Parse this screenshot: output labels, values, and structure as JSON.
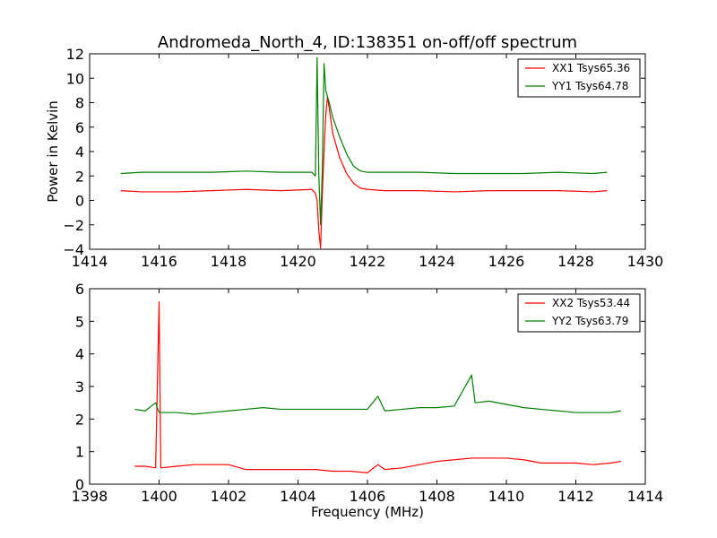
{
  "figure": {
    "title": "Andromeda_North_4, ID:138351 on-off/off spectrum"
  },
  "chart_data": [
    {
      "type": "line",
      "title": "Andromeda_North_4, ID:138351 on-off/off spectrum",
      "xlabel": "",
      "ylabel": "Power in Kelvin",
      "xlim": [
        1414,
        1430
      ],
      "ylim": [
        -4,
        12
      ],
      "xticks": [
        "1414",
        "1416",
        "1418",
        "1420",
        "1422",
        "1424",
        "1426",
        "1428",
        "1430"
      ],
      "yticks": [
        "−4",
        "−2",
        "0",
        "2",
        "4",
        "6",
        "8",
        "10",
        "12"
      ],
      "legend_position": "top-right",
      "series": [
        {
          "name": "XX1 Tsys65.36",
          "color": "#ff0000",
          "x": [
            1414.9,
            1415.5,
            1416.5,
            1417.5,
            1418.5,
            1419.5,
            1420.4,
            1420.5,
            1420.55,
            1420.6,
            1420.65,
            1420.7,
            1420.75,
            1420.8,
            1420.85,
            1420.9,
            1421.0,
            1421.2,
            1421.4,
            1421.6,
            1421.8,
            1422.0,
            1422.5,
            1423.5,
            1424.5,
            1425.5,
            1426.5,
            1427.5,
            1428.5,
            1428.9
          ],
          "y": [
            0.8,
            0.7,
            0.7,
            0.8,
            0.9,
            0.8,
            0.9,
            0.6,
            0.0,
            -2.5,
            -3.9,
            0.5,
            4.0,
            7.0,
            8.5,
            7.5,
            5.5,
            3.5,
            2.2,
            1.4,
            1.0,
            0.9,
            0.8,
            0.8,
            0.7,
            0.8,
            0.8,
            0.8,
            0.7,
            0.8
          ]
        },
        {
          "name": "YY1 Tsys64.78",
          "color": "#007f00",
          "x": [
            1414.9,
            1415.5,
            1416.5,
            1417.5,
            1418.5,
            1419.5,
            1420.4,
            1420.5,
            1420.55,
            1420.6,
            1420.65,
            1420.7,
            1420.75,
            1420.8,
            1420.85,
            1420.9,
            1421.0,
            1421.2,
            1421.4,
            1421.6,
            1421.8,
            1422.0,
            1422.5,
            1423.5,
            1424.5,
            1425.5,
            1426.5,
            1427.5,
            1428.5,
            1428.9
          ],
          "y": [
            2.2,
            2.3,
            2.3,
            2.3,
            2.4,
            2.3,
            2.3,
            2.0,
            11.7,
            2.0,
            -2.0,
            2.5,
            11.2,
            9.0,
            8.5,
            8.0,
            6.8,
            5.2,
            3.8,
            2.8,
            2.4,
            2.3,
            2.3,
            2.3,
            2.2,
            2.2,
            2.2,
            2.3,
            2.2,
            2.3
          ]
        }
      ]
    },
    {
      "type": "line",
      "title": "",
      "xlabel": "Frequency (MHz)",
      "ylabel": "",
      "xlim": [
        1398,
        1414
      ],
      "ylim": [
        0,
        6
      ],
      "xticks": [
        "1398",
        "1400",
        "1402",
        "1404",
        "1406",
        "1408",
        "1410",
        "1412",
        "1414"
      ],
      "yticks": [
        "0",
        "1",
        "2",
        "3",
        "4",
        "5",
        "6"
      ],
      "legend_position": "top-right",
      "series": [
        {
          "name": "XX2 Tsys53.44",
          "color": "#ff0000",
          "x": [
            1399.3,
            1399.6,
            1399.9,
            1400.0,
            1400.05,
            1400.5,
            1401.0,
            1401.5,
            1402.0,
            1402.5,
            1403.0,
            1403.5,
            1404.0,
            1404.5,
            1405.0,
            1405.5,
            1406.0,
            1406.3,
            1406.5,
            1407.0,
            1407.5,
            1408.0,
            1408.5,
            1409.0,
            1409.5,
            1410.0,
            1410.5,
            1411.0,
            1411.5,
            1412.0,
            1412.5,
            1413.0,
            1413.3
          ],
          "y": [
            0.55,
            0.55,
            0.5,
            5.6,
            0.5,
            0.55,
            0.6,
            0.6,
            0.6,
            0.45,
            0.45,
            0.45,
            0.45,
            0.45,
            0.4,
            0.4,
            0.35,
            0.6,
            0.45,
            0.5,
            0.6,
            0.7,
            0.75,
            0.8,
            0.8,
            0.8,
            0.75,
            0.65,
            0.65,
            0.65,
            0.6,
            0.65,
            0.7
          ]
        },
        {
          "name": "YY2 Tsys63.79",
          "color": "#007f00",
          "x": [
            1399.3,
            1399.6,
            1399.9,
            1400.0,
            1400.5,
            1401.0,
            1401.5,
            1402.0,
            1402.5,
            1403.0,
            1403.5,
            1404.0,
            1404.5,
            1405.0,
            1405.5,
            1406.0,
            1406.3,
            1406.5,
            1407.0,
            1407.5,
            1408.0,
            1408.5,
            1409.0,
            1409.1,
            1409.5,
            1410.0,
            1410.5,
            1411.0,
            1411.5,
            1412.0,
            1412.5,
            1413.0,
            1413.3
          ],
          "y": [
            2.3,
            2.25,
            2.5,
            2.2,
            2.2,
            2.15,
            2.2,
            2.25,
            2.3,
            2.35,
            2.3,
            2.3,
            2.3,
            2.3,
            2.3,
            2.3,
            2.7,
            2.25,
            2.3,
            2.35,
            2.35,
            2.4,
            3.35,
            2.5,
            2.55,
            2.45,
            2.35,
            2.3,
            2.25,
            2.2,
            2.2,
            2.2,
            2.25
          ]
        }
      ]
    }
  ]
}
